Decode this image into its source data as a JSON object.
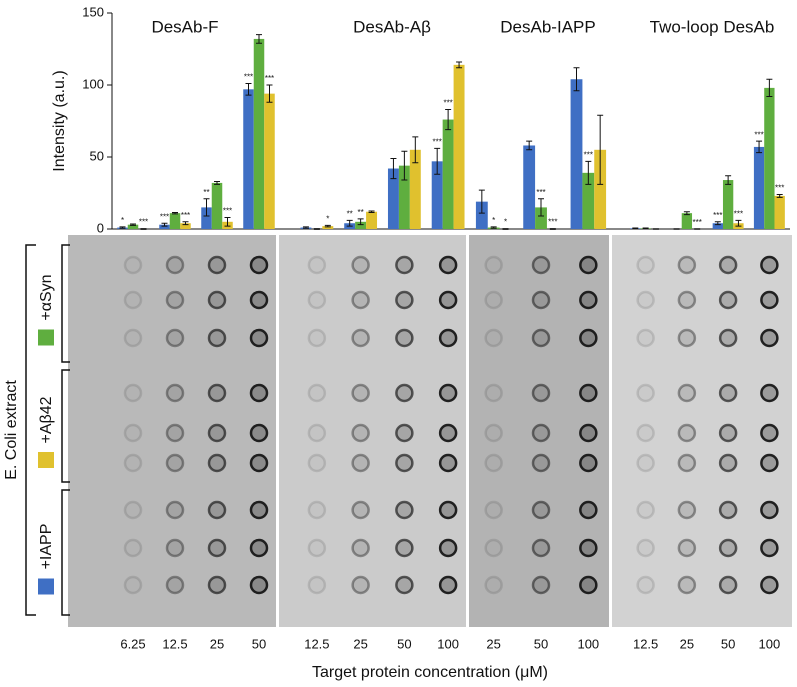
{
  "chart_data": {
    "type": "bar",
    "y_label": "Intensity (a.u.)",
    "x_label": "Target protein concentration (μM)",
    "blot_label": "E. Coli extract",
    "ylim": [
      0,
      150
    ],
    "yticks": [
      0,
      50,
      100,
      150
    ],
    "series": [
      {
        "name": "+IAPP",
        "color": "#3f6fc4"
      },
      {
        "name": "+αSyn",
        "color": "#5fae3f"
      },
      {
        "name": "+Aβ42",
        "color": "#e0c12e"
      }
    ],
    "panels": [
      {
        "title": "DesAb-F",
        "categories": [
          "6.25",
          "12.5",
          "25",
          "50"
        ],
        "values": [
          [
            1,
            3,
            15,
            97
          ],
          [
            3,
            11,
            32,
            132
          ],
          [
            0,
            4,
            5,
            94
          ]
        ],
        "errors": [
          [
            0.5,
            1,
            6,
            4
          ],
          [
            0.5,
            0.5,
            1,
            3
          ],
          [
            0.3,
            1,
            3,
            6
          ]
        ],
        "significance": [
          [
            "*",
            "***",
            "**",
            "***"
          ],
          [
            null,
            null,
            null,
            null
          ],
          [
            "***",
            "***",
            "***",
            "***"
          ]
        ]
      },
      {
        "title": "DesAb-Aβ",
        "categories": [
          "12.5",
          "25",
          "50",
          "100"
        ],
        "values": [
          [
            1,
            4,
            42,
            47
          ],
          [
            0,
            5,
            44,
            76
          ],
          [
            2,
            12,
            55,
            114
          ]
        ],
        "errors": [
          [
            0.5,
            2,
            7,
            9
          ],
          [
            0.3,
            2,
            10,
            7
          ],
          [
            0.5,
            0.5,
            9,
            2
          ]
        ],
        "significance": [
          [
            null,
            "**",
            null,
            "***"
          ],
          [
            null,
            "**",
            null,
            "***"
          ],
          [
            "*",
            null,
            null,
            null
          ]
        ]
      },
      {
        "title": "DesAb-IAPP",
        "categories": [
          "25",
          "50",
          "100"
        ],
        "values": [
          [
            19,
            58,
            104
          ],
          [
            1,
            15,
            39
          ],
          [
            0,
            0,
            55
          ]
        ],
        "errors": [
          [
            8,
            3,
            8
          ],
          [
            0.5,
            6,
            8
          ],
          [
            0.3,
            0.3,
            24
          ]
        ],
        "significance": [
          [
            null,
            null,
            null
          ],
          [
            "*",
            "***",
            "***"
          ],
          [
            "*",
            "***",
            null
          ]
        ]
      },
      {
        "title": "Two-loop DesAb",
        "categories": [
          "12.5",
          "25",
          "50",
          "100"
        ],
        "values": [
          [
            0.5,
            0,
            4,
            57
          ],
          [
            0.5,
            11,
            34,
            98
          ],
          [
            0,
            0,
            4,
            23
          ]
        ],
        "errors": [
          [
            0.2,
            0.2,
            1,
            4
          ],
          [
            0.2,
            1,
            3,
            6
          ],
          [
            0.2,
            0.2,
            2,
            1
          ]
        ],
        "significance": [
          [
            null,
            null,
            "***",
            "***"
          ],
          [
            null,
            null,
            null,
            null
          ],
          [
            null,
            "***",
            "***",
            "***"
          ]
        ]
      }
    ]
  }
}
